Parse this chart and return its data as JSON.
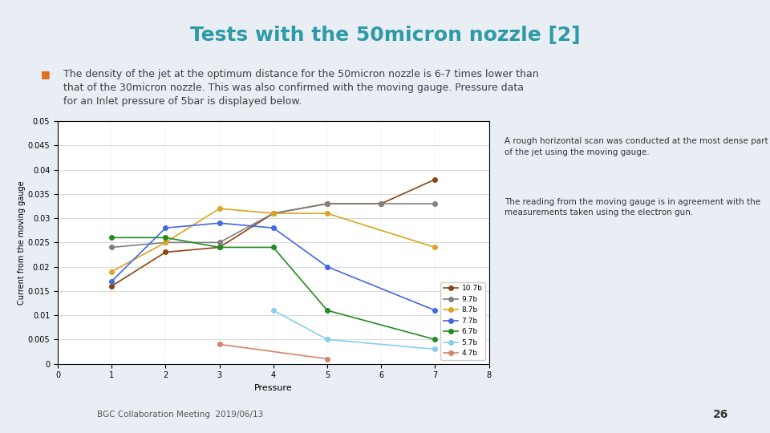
{
  "title": "Tests with the 50micron nozzle [2]",
  "title_color": "#2E9AA8",
  "bullet_text": "The density of the jet at the optimum distance for the 50micron nozzle is 6-7 times lower than\nthat of the 30micron nozzle. This was also confirmed with the moving gauge. Pressure data\nfor an Inlet pressure of 5bar is displayed below.",
  "bullet_color": "#404040",
  "annotation1": "A rough horizontal scan was conducted at the most dense part\nof the jet using the moving gauge.",
  "annotation2": "The reading from the moving gauge is in agreement with the\nmeasurements taken using the electron gun.",
  "xlabel": "Pressure",
  "ylabel": "Current from the moving gauge",
  "slide_number": "26",
  "footer_text": "BGC Collaboration Meeting  2019/06/13",
  "background_color": "#FFFFFF",
  "slide_background": "#F0F4F8",
  "series": [
    {
      "label": "10.7b",
      "color": "#8B4513",
      "marker": "o",
      "x": [
        1,
        2,
        3,
        4,
        5,
        6,
        7
      ],
      "y": [
        0.016,
        0.023,
        0.024,
        0.031,
        0.033,
        0.033,
        0.038
      ]
    },
    {
      "label": "9.7b",
      "color": "#808080",
      "marker": "o",
      "x": [
        1,
        2,
        3,
        4,
        5,
        6,
        7
      ],
      "y": [
        0.024,
        0.025,
        0.025,
        0.031,
        0.033,
        0.033,
        0.033
      ]
    },
    {
      "label": "8.7b",
      "color": "#DAA520",
      "marker": "o",
      "x": [
        1,
        2,
        3,
        4,
        5,
        6,
        7
      ],
      "y": [
        0.019,
        0.025,
        0.032,
        0.031,
        0.031,
        null,
        0.024
      ]
    },
    {
      "label": "7.7b",
      "color": "#4169E1",
      "marker": "o",
      "x": [
        1,
        2,
        3,
        4,
        5,
        6,
        7
      ],
      "y": [
        0.017,
        0.028,
        0.029,
        0.028,
        0.02,
        null,
        0.011
      ]
    },
    {
      "label": "6.7b",
      "color": "#228B22",
      "marker": "o",
      "x": [
        1,
        2,
        3,
        4,
        5,
        6,
        7
      ],
      "y": [
        0.026,
        0.026,
        0.024,
        0.024,
        0.011,
        null,
        0.005
      ]
    },
    {
      "label": "5.7b",
      "color": "#87CEEB",
      "marker": "o",
      "x": [
        1,
        2,
        3,
        4,
        5,
        6,
        7
      ],
      "y": [
        null,
        null,
        null,
        0.011,
        0.005,
        null,
        0.003
      ]
    },
    {
      "label": "4.7b",
      "color": "#D2856E",
      "marker": "o",
      "x": [
        1,
        2,
        3,
        4,
        5,
        6,
        7
      ],
      "y": [
        null,
        null,
        0.004,
        null,
        0.001,
        null,
        null
      ]
    }
  ],
  "xlim": [
    0,
    8
  ],
  "ylim": [
    0,
    0.05
  ],
  "yticks": [
    0,
    0.005,
    0.01,
    0.015,
    0.02,
    0.025,
    0.03,
    0.035,
    0.04,
    0.045,
    0.05
  ],
  "ytick_labels": [
    "0",
    "0.005",
    "0.01",
    "0.015",
    "0.02",
    "0.025",
    "0.03",
    "0.035",
    "0.04",
    "0.045",
    "0.05"
  ],
  "xticks": [
    0,
    1,
    2,
    3,
    4,
    5,
    6,
    7,
    8
  ]
}
